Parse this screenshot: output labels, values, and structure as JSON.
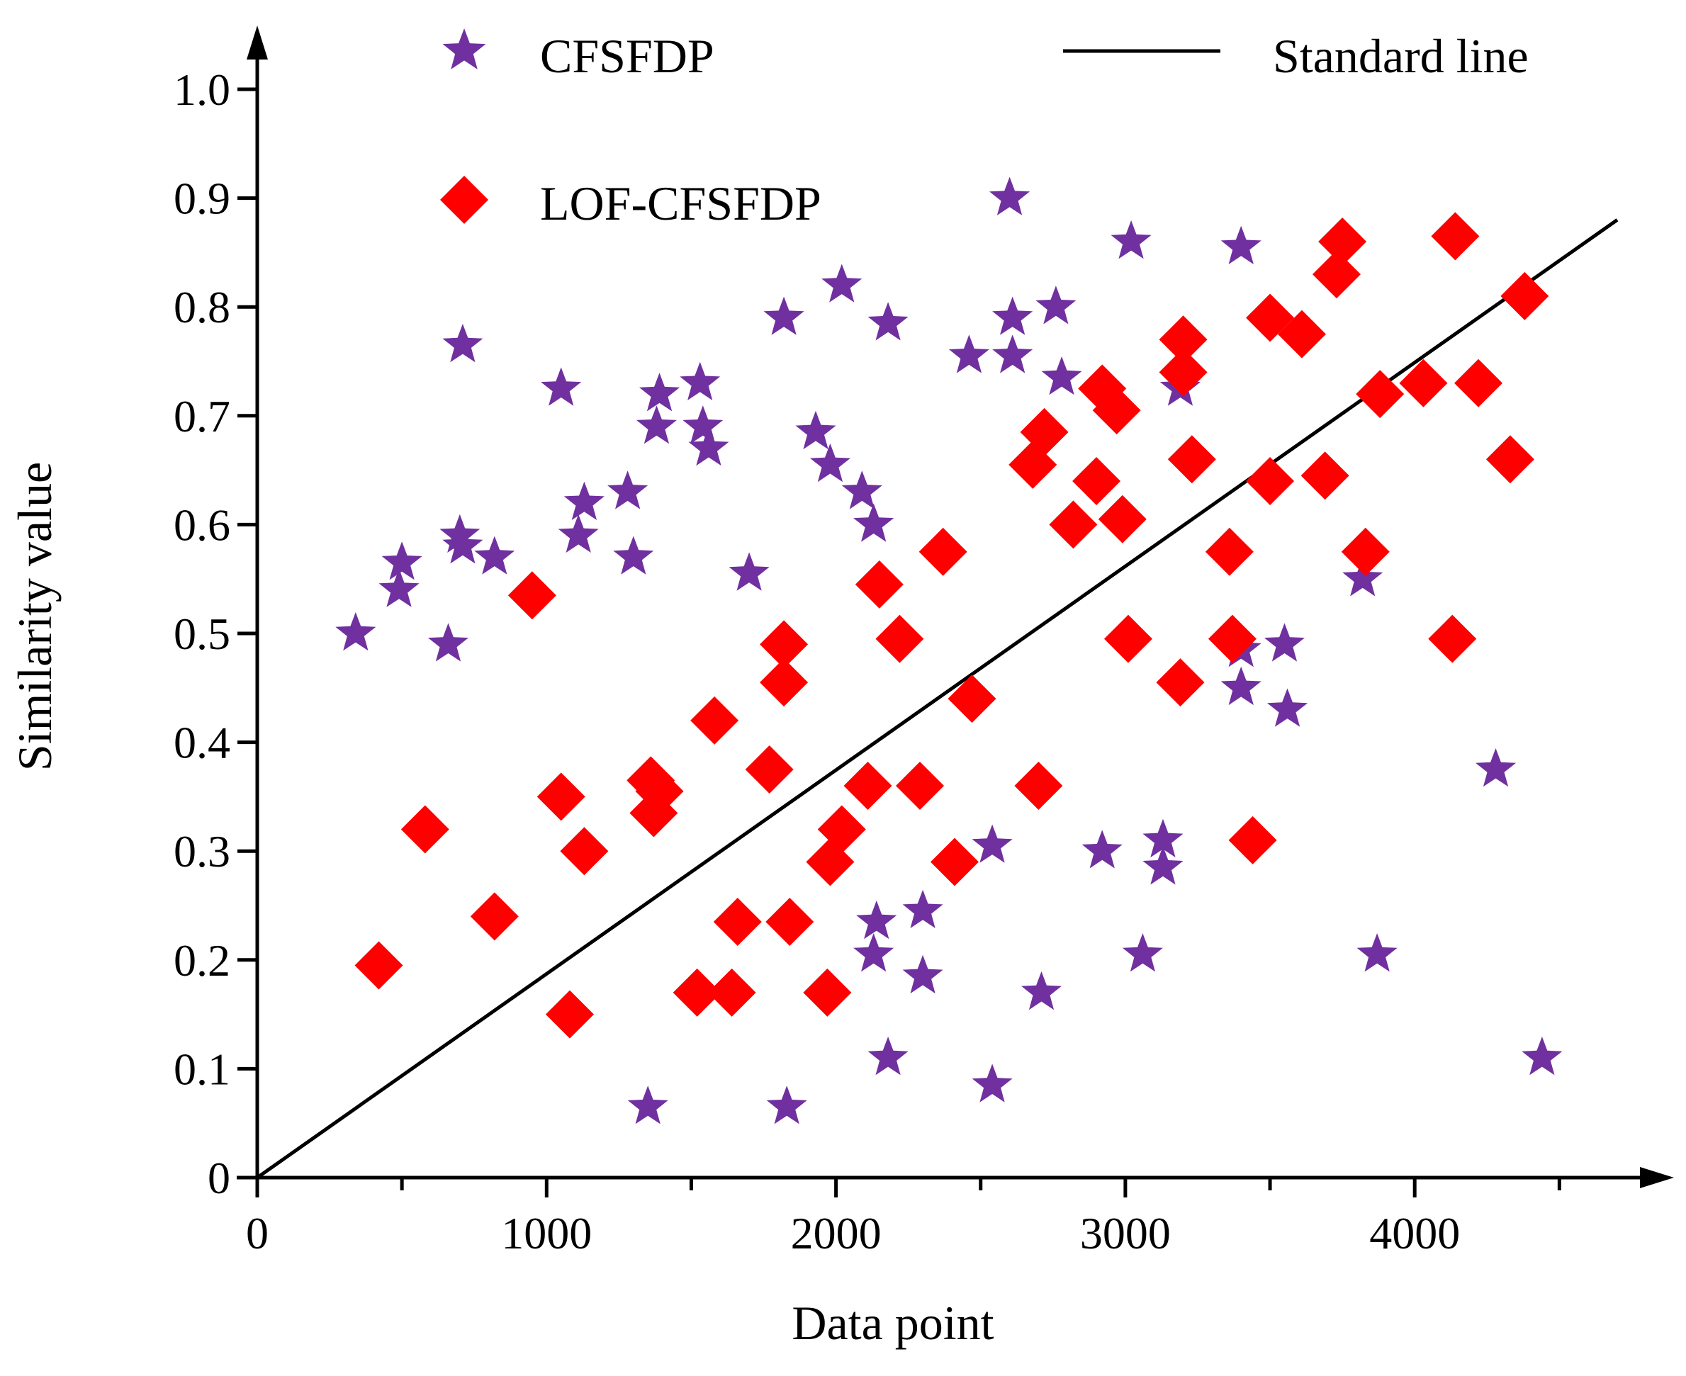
{
  "chart_data": {
    "type": "scatter",
    "title": "",
    "xlabel": "Data point",
    "ylabel": "Similarity value",
    "xlim": [
      0,
      4700
    ],
    "ylim": [
      0,
      1.0
    ],
    "x_ticks": [
      0,
      1000,
      2000,
      3000,
      4000
    ],
    "x_tick_labels": [
      "0",
      "1000",
      "2000",
      "3000",
      "4000"
    ],
    "x_minor_ticks": [
      500,
      1500,
      2500,
      3500,
      4500
    ],
    "y_ticks": [
      0,
      0.1,
      0.2,
      0.3,
      0.4,
      0.5,
      0.6,
      0.7,
      0.8,
      0.9,
      1.0
    ],
    "y_tick_labels": [
      "0",
      "0.1",
      "0.2",
      "0.3",
      "0.4",
      "0.5",
      "0.6",
      "0.7",
      "0.8",
      "0.9",
      "1.0"
    ],
    "grid": false,
    "legend": [
      {
        "label": "CFSFDP",
        "marker": "star",
        "color": "#7030A0"
      },
      {
        "label": "LOF-CFSFDP",
        "marker": "diamond",
        "color": "#FF0000"
      },
      {
        "label": "Standard line",
        "marker": "line",
        "color": "#000000"
      }
    ],
    "series": [
      {
        "name": "CFSFDP",
        "marker": "star",
        "color": "#7030A0",
        "points": [
          [
            340,
            0.5
          ],
          [
            490,
            0.54
          ],
          [
            500,
            0.565
          ],
          [
            660,
            0.49
          ],
          [
            700,
            0.59
          ],
          [
            710,
            0.58
          ],
          [
            710,
            0.765
          ],
          [
            820,
            0.57
          ],
          [
            1050,
            0.725
          ],
          [
            1110,
            0.59
          ],
          [
            1130,
            0.62
          ],
          [
            1280,
            0.63
          ],
          [
            1300,
            0.57
          ],
          [
            1380,
            0.69
          ],
          [
            1390,
            0.72
          ],
          [
            1350,
            0.065
          ],
          [
            1530,
            0.73
          ],
          [
            1540,
            0.69
          ],
          [
            1560,
            0.67
          ],
          [
            1700,
            0.555
          ],
          [
            1820,
            0.79
          ],
          [
            1830,
            0.065
          ],
          [
            1930,
            0.685
          ],
          [
            1980,
            0.655
          ],
          [
            2020,
            0.82
          ],
          [
            2090,
            0.63
          ],
          [
            2130,
            0.6
          ],
          [
            2130,
            0.205
          ],
          [
            2140,
            0.235
          ],
          [
            2180,
            0.785
          ],
          [
            2180,
            0.11
          ],
          [
            2300,
            0.245
          ],
          [
            2300,
            0.185
          ],
          [
            2460,
            0.755
          ],
          [
            2540,
            0.305
          ],
          [
            2540,
            0.085
          ],
          [
            2600,
            0.9
          ],
          [
            2610,
            0.79
          ],
          [
            2610,
            0.755
          ],
          [
            2710,
            0.17
          ],
          [
            2760,
            0.8
          ],
          [
            2780,
            0.735
          ],
          [
            2920,
            0.3
          ],
          [
            3020,
            0.86
          ],
          [
            3060,
            0.205
          ],
          [
            3130,
            0.31
          ],
          [
            3130,
            0.285
          ],
          [
            3190,
            0.725
          ],
          [
            3400,
            0.855
          ],
          [
            3400,
            0.485
          ],
          [
            3400,
            0.45
          ],
          [
            3550,
            0.49
          ],
          [
            3560,
            0.43
          ],
          [
            3820,
            0.55
          ],
          [
            3870,
            0.205
          ],
          [
            4280,
            0.375
          ],
          [
            4440,
            0.11
          ]
        ]
      },
      {
        "name": "LOF-CFSFDP",
        "marker": "diamond",
        "color": "#FF0000",
        "points": [
          [
            420,
            0.195
          ],
          [
            580,
            0.32
          ],
          [
            820,
            0.24
          ],
          [
            950,
            0.535
          ],
          [
            1050,
            0.35
          ],
          [
            1080,
            0.15
          ],
          [
            1130,
            0.3
          ],
          [
            1360,
            0.365
          ],
          [
            1370,
            0.335
          ],
          [
            1390,
            0.355
          ],
          [
            1520,
            0.17
          ],
          [
            1580,
            0.42
          ],
          [
            1640,
            0.17
          ],
          [
            1660,
            0.235
          ],
          [
            1770,
            0.375
          ],
          [
            1820,
            0.49
          ],
          [
            1820,
            0.455
          ],
          [
            1840,
            0.235
          ],
          [
            1970,
            0.17
          ],
          [
            1980,
            0.29
          ],
          [
            2020,
            0.32
          ],
          [
            2110,
            0.36
          ],
          [
            2150,
            0.545
          ],
          [
            2220,
            0.495
          ],
          [
            2290,
            0.36
          ],
          [
            2370,
            0.575
          ],
          [
            2410,
            0.29
          ],
          [
            2470,
            0.44
          ],
          [
            2680,
            0.655
          ],
          [
            2700,
            0.36
          ],
          [
            2720,
            0.685
          ],
          [
            2820,
            0.6
          ],
          [
            2900,
            0.64
          ],
          [
            2920,
            0.725
          ],
          [
            2970,
            0.705
          ],
          [
            2990,
            0.605
          ],
          [
            3010,
            0.495
          ],
          [
            3190,
            0.455
          ],
          [
            3200,
            0.77
          ],
          [
            3200,
            0.74
          ],
          [
            3230,
            0.66
          ],
          [
            3360,
            0.575
          ],
          [
            3370,
            0.495
          ],
          [
            3440,
            0.31
          ],
          [
            3500,
            0.79
          ],
          [
            3500,
            0.64
          ],
          [
            3610,
            0.775
          ],
          [
            3690,
            0.645
          ],
          [
            3730,
            0.83
          ],
          [
            3750,
            0.86
          ],
          [
            3830,
            0.575
          ],
          [
            3880,
            0.72
          ],
          [
            4030,
            0.73
          ],
          [
            4130,
            0.495
          ],
          [
            4140,
            0.865
          ],
          [
            4220,
            0.73
          ],
          [
            4330,
            0.66
          ],
          [
            4380,
            0.81
          ]
        ]
      }
    ],
    "standard_line": {
      "name": "Standard line",
      "color": "#000000",
      "x": [
        0,
        4700
      ],
      "y": [
        0,
        0.88
      ]
    }
  }
}
